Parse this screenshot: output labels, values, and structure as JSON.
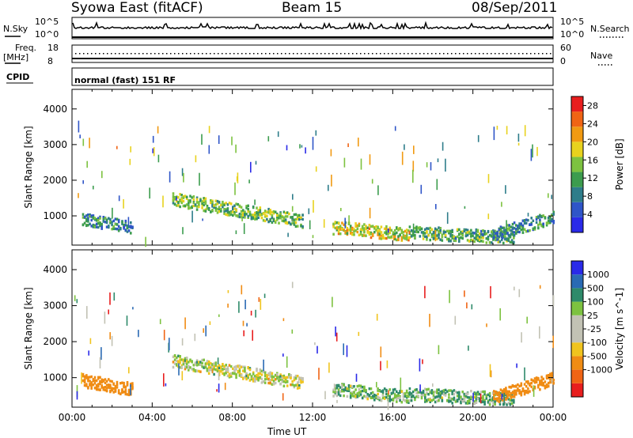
{
  "header": {
    "station": "Syowa East (fitACF)",
    "beam": "Beam 15",
    "date": "08/Sep/2011"
  },
  "strips": {
    "nsky_label": "N.Sky",
    "nsearch_label": "N.Search",
    "nsky_top": "10^5",
    "nsky_bottom": "10^0",
    "freq_label": "Freq.",
    "freq_unit": "[MHz]",
    "freq_top": "18",
    "freq_bottom": "8",
    "nave_label": "Nave",
    "nave_top": "60",
    "nave_bottom": "0",
    "cpid_label": "CPID",
    "cpid_value": "normal (fast) 151 RF"
  },
  "colors": {
    "power": [
      "#2a2ae8",
      "#2f55c8",
      "#2e7d8a",
      "#3c9c4e",
      "#7dc240",
      "#e8d21e",
      "#f19a12",
      "#f06414",
      "#e81e1e"
    ],
    "velocity": [
      "#e81e1e",
      "#f06414",
      "#f08c14",
      "#f0c41e",
      "#c2c2b4",
      "#c2c2b4",
      "#7dc240",
      "#2e8a6a",
      "#2a6ab4",
      "#2a2ae8"
    ]
  },
  "chart_data": [
    {
      "type": "heatmap",
      "title": "",
      "xlabel": "Time UT",
      "ylabel": "Slant Range [km]",
      "xlim": [
        "00:00",
        "24:00"
      ],
      "ylim": [
        180,
        4550
      ],
      "x_ticks": [
        "00:00",
        "04:00",
        "08:00",
        "12:00",
        "16:00",
        "20:00",
        "00:00"
      ],
      "y_ticks": [
        "1000",
        "2000",
        "3000",
        "4000"
      ],
      "colorbar_label": "Power [dB]",
      "colorbar_ticks": [
        "4",
        "8",
        "12",
        "16",
        "20",
        "24",
        "28"
      ],
      "colorbar_range": [
        0,
        30
      ],
      "features": [
        {
          "t_start": 5.0,
          "t_end": 11.5,
          "range_start": 1500,
          "range_end": 880,
          "power_db": 14
        },
        {
          "t_start": 13.0,
          "t_end": 16.8,
          "range_start": 700,
          "range_end": 500,
          "power_db": 18
        },
        {
          "t_start": 16.8,
          "t_end": 22.0,
          "range_start": 560,
          "range_end": 430,
          "power_db": 12
        },
        {
          "t_start": 21.0,
          "t_end": 24.0,
          "range_start": 500,
          "range_end": 1000,
          "power_db": 10
        },
        {
          "t_start": 0.5,
          "t_end": 3.0,
          "range_start": 950,
          "range_end": 700,
          "power_db": 9
        }
      ]
    },
    {
      "type": "heatmap",
      "title": "",
      "xlabel": "Time UT",
      "ylabel": "Slant Range [km]",
      "xlim": [
        "00:00",
        "24:00"
      ],
      "ylim": [
        180,
        4550
      ],
      "x_ticks": [
        "00:00",
        "04:00",
        "08:00",
        "12:00",
        "16:00",
        "20:00",
        "00:00"
      ],
      "y_ticks": [
        "1000",
        "2000",
        "3000",
        "4000"
      ],
      "colorbar_label": "Velocity [m s^-1]",
      "colorbar_ticks": [
        "1000",
        "500",
        "100",
        "25",
        "-25",
        "-100",
        "-500",
        "-1000"
      ],
      "colorbar_range": [
        -1000,
        1000
      ],
      "features": [
        {
          "t_start": 5.0,
          "t_end": 11.5,
          "range_start": 1500,
          "range_end": 880,
          "velocity": 0
        },
        {
          "t_start": 13.0,
          "t_end": 16.8,
          "range_start": 700,
          "range_end": 500,
          "velocity": 80
        },
        {
          "t_start": 16.8,
          "t_end": 22.0,
          "range_start": 560,
          "range_end": 430,
          "velocity": 80
        },
        {
          "t_start": 21.0,
          "t_end": 24.0,
          "range_start": 500,
          "range_end": 1000,
          "velocity": -300
        },
        {
          "t_start": 0.5,
          "t_end": 3.0,
          "range_start": 950,
          "range_end": 700,
          "velocity": -300
        }
      ]
    }
  ]
}
